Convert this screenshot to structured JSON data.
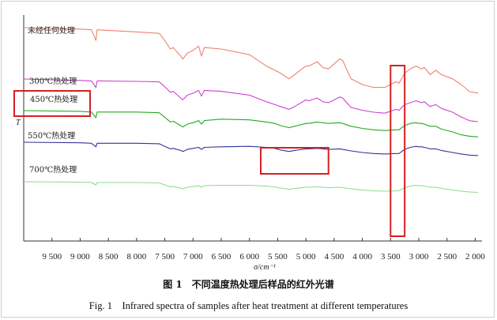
{
  "chart_data": {
    "type": "line",
    "xlabel": "σ/cm⁻¹",
    "ylabel": "T",
    "xlim": [
      10000,
      1950
    ],
    "x_reversed": true,
    "x_ticks": [
      9500,
      9000,
      8500,
      8000,
      7500,
      7000,
      6500,
      6000,
      5500,
      5000,
      4500,
      4000,
      3500,
      3000,
      2500,
      2000
    ],
    "x_tick_labels": [
      "9 500",
      "9 000",
      "8 500",
      "8 000",
      "7 500",
      "7 000",
      "6 500",
      "6 000",
      "5 500",
      "5 000",
      "4 500",
      "4 000",
      "3 500",
      "3 000",
      "2 500",
      "2 000"
    ],
    "grid": false,
    "legend": "inline labels above each curve",
    "series": [
      {
        "name": "未经任何处理",
        "color": "#f08070",
        "y": 0,
        "points": [
          [
            10000,
            0.2
          ],
          [
            9000,
            0.21
          ],
          [
            8800,
            0.215
          ],
          [
            8720,
            0.29
          ],
          [
            8700,
            0.215
          ],
          [
            8000,
            0.23
          ],
          [
            7600,
            0.24
          ],
          [
            7520,
            0.28
          ],
          [
            7400,
            0.35
          ],
          [
            7350,
            0.34
          ],
          [
            7220,
            0.4
          ],
          [
            7180,
            0.42
          ],
          [
            7100,
            0.38
          ],
          [
            7000,
            0.36
          ],
          [
            6900,
            0.33
          ],
          [
            6850,
            0.4
          ],
          [
            6800,
            0.34
          ],
          [
            6500,
            0.35
          ],
          [
            6000,
            0.39
          ],
          [
            5700,
            0.47
          ],
          [
            5550,
            0.5
          ],
          [
            5450,
            0.52
          ],
          [
            5300,
            0.56
          ],
          [
            5200,
            0.53
          ],
          [
            5000,
            0.47
          ],
          [
            4950,
            0.47
          ],
          [
            4800,
            0.44
          ],
          [
            4700,
            0.48
          ],
          [
            4600,
            0.49
          ],
          [
            4400,
            0.42
          ],
          [
            4350,
            0.43
          ],
          [
            4200,
            0.56
          ],
          [
            4000,
            0.6
          ],
          [
            3800,
            0.62
          ],
          [
            3600,
            0.62
          ],
          [
            3400,
            0.58
          ],
          [
            3350,
            0.59
          ],
          [
            3250,
            0.52
          ],
          [
            3150,
            0.49
          ],
          [
            3050,
            0.47
          ],
          [
            3000,
            0.48
          ],
          [
            2950,
            0.49
          ],
          [
            2900,
            0.48
          ],
          [
            2800,
            0.53
          ],
          [
            2700,
            0.5
          ],
          [
            2600,
            0.53
          ],
          [
            2400,
            0.56
          ],
          [
            2250,
            0.6
          ],
          [
            2100,
            0.65
          ],
          [
            1950,
            0.66
          ]
        ]
      },
      {
        "name": "300℃热处理",
        "color": "#cc44cc",
        "y": 0,
        "points": [
          [
            10000,
            0.43
          ],
          [
            9000,
            0.445
          ],
          [
            8800,
            0.45
          ],
          [
            8720,
            0.52
          ],
          [
            8700,
            0.45
          ],
          [
            8000,
            0.455
          ],
          [
            7600,
            0.46
          ],
          [
            7520,
            0.5
          ],
          [
            7400,
            0.57
          ],
          [
            7350,
            0.56
          ],
          [
            7220,
            0.63
          ],
          [
            7180,
            0.65
          ],
          [
            7100,
            0.6
          ],
          [
            7000,
            0.58
          ],
          [
            6900,
            0.55
          ],
          [
            6850,
            0.61
          ],
          [
            6800,
            0.55
          ],
          [
            6500,
            0.56
          ],
          [
            6000,
            0.6
          ],
          [
            5700,
            0.67
          ],
          [
            5550,
            0.7
          ],
          [
            5450,
            0.72
          ],
          [
            5300,
            0.75
          ],
          [
            5200,
            0.72
          ],
          [
            5000,
            0.65
          ],
          [
            4950,
            0.66
          ],
          [
            4800,
            0.63
          ],
          [
            4700,
            0.67
          ],
          [
            4600,
            0.68
          ],
          [
            4400,
            0.62
          ],
          [
            4350,
            0.63
          ],
          [
            4200,
            0.73
          ],
          [
            4000,
            0.76
          ],
          [
            3800,
            0.78
          ],
          [
            3600,
            0.79
          ],
          [
            3400,
            0.75
          ],
          [
            3350,
            0.76
          ],
          [
            3250,
            0.7
          ],
          [
            3150,
            0.68
          ],
          [
            3050,
            0.66
          ],
          [
            3000,
            0.67
          ],
          [
            2950,
            0.68
          ],
          [
            2900,
            0.67
          ],
          [
            2800,
            0.72
          ],
          [
            2700,
            0.7
          ],
          [
            2600,
            0.74
          ],
          [
            2400,
            0.78
          ],
          [
            2250,
            0.83
          ],
          [
            2100,
            0.87
          ],
          [
            1950,
            0.88
          ]
        ]
      },
      {
        "name": "450℃热处理",
        "color": "#22aa22",
        "y": 0,
        "points": [
          [
            10000,
            0.58
          ],
          [
            9000,
            0.59
          ],
          [
            8800,
            0.6
          ],
          [
            8720,
            0.68
          ],
          [
            8700,
            0.6
          ],
          [
            8000,
            0.6
          ],
          [
            7600,
            0.61
          ],
          [
            7520,
            0.66
          ],
          [
            7400,
            0.74
          ],
          [
            7350,
            0.73
          ],
          [
            7220,
            0.79
          ],
          [
            7180,
            0.81
          ],
          [
            7100,
            0.77
          ],
          [
            7000,
            0.75
          ],
          [
            6900,
            0.72
          ],
          [
            6850,
            0.77
          ],
          [
            6800,
            0.72
          ],
          [
            6500,
            0.7
          ],
          [
            6000,
            0.71
          ],
          [
            5700,
            0.74
          ],
          [
            5550,
            0.76
          ],
          [
            5450,
            0.79
          ],
          [
            5300,
            0.82
          ],
          [
            5200,
            0.8
          ],
          [
            5000,
            0.76
          ],
          [
            4950,
            0.76
          ],
          [
            4800,
            0.74
          ],
          [
            4700,
            0.75
          ],
          [
            4600,
            0.76
          ],
          [
            4400,
            0.75
          ],
          [
            4350,
            0.76
          ],
          [
            4200,
            0.8
          ],
          [
            4000,
            0.83
          ],
          [
            3800,
            0.85
          ],
          [
            3600,
            0.86
          ],
          [
            3400,
            0.85
          ],
          [
            3350,
            0.85
          ],
          [
            3250,
            0.79
          ],
          [
            3150,
            0.76
          ],
          [
            3050,
            0.75
          ],
          [
            3000,
            0.76
          ],
          [
            2950,
            0.76
          ],
          [
            2900,
            0.77
          ],
          [
            2800,
            0.8
          ],
          [
            2700,
            0.8
          ],
          [
            2600,
            0.84
          ],
          [
            2400,
            0.88
          ],
          [
            2250,
            0.92
          ],
          [
            2100,
            0.94
          ],
          [
            1950,
            0.95
          ]
        ]
      },
      {
        "name": "550℃热处理",
        "color": "#333399",
        "y": 0,
        "points": [
          [
            10000,
            0.8
          ],
          [
            9000,
            0.81
          ],
          [
            8800,
            0.82
          ],
          [
            8720,
            0.89
          ],
          [
            8700,
            0.82
          ],
          [
            8000,
            0.82
          ],
          [
            7600,
            0.83
          ],
          [
            7520,
            0.87
          ],
          [
            7400,
            0.93
          ],
          [
            7350,
            0.92
          ],
          [
            7220,
            0.96
          ],
          [
            7180,
            0.98
          ],
          [
            7100,
            0.94
          ],
          [
            7000,
            0.92
          ],
          [
            6900,
            0.9
          ],
          [
            6850,
            0.94
          ],
          [
            6800,
            0.9
          ],
          [
            6500,
            0.89
          ],
          [
            6000,
            0.88
          ],
          [
            5700,
            0.9
          ],
          [
            5550,
            0.92
          ],
          [
            5450,
            0.95
          ],
          [
            5300,
            0.98
          ],
          [
            5200,
            0.96
          ],
          [
            5000,
            0.93
          ],
          [
            4950,
            0.93
          ],
          [
            4800,
            0.92
          ],
          [
            4700,
            0.93
          ],
          [
            4600,
            0.94
          ],
          [
            4400,
            0.93
          ],
          [
            4350,
            0.94
          ],
          [
            4200,
            0.97
          ],
          [
            4000,
            1.0
          ],
          [
            3800,
            1.02
          ],
          [
            3600,
            1.03
          ],
          [
            3400,
            1.02
          ],
          [
            3350,
            1.02
          ],
          [
            3250,
            0.94
          ],
          [
            3150,
            0.9
          ],
          [
            3050,
            0.88
          ],
          [
            3000,
            0.89
          ],
          [
            2950,
            0.89
          ],
          [
            2900,
            0.9
          ],
          [
            2800,
            0.93
          ],
          [
            2700,
            0.93
          ],
          [
            2600,
            0.96
          ],
          [
            2400,
            1.0
          ],
          [
            2250,
            1.03
          ],
          [
            2100,
            1.05
          ],
          [
            1950,
            1.06
          ]
        ]
      },
      {
        "name": "700℃热处理",
        "color": "#88dd88",
        "y": 0,
        "points": [
          [
            10000,
            1.0
          ],
          [
            9000,
            1.01
          ],
          [
            8800,
            1.02
          ],
          [
            8720,
            1.08
          ],
          [
            8700,
            1.02
          ],
          [
            8000,
            1.02
          ],
          [
            7600,
            1.03
          ],
          [
            7520,
            1.07
          ],
          [
            7400,
            1.13
          ],
          [
            7350,
            1.12
          ],
          [
            7220,
            1.16
          ],
          [
            7180,
            1.18
          ],
          [
            7100,
            1.14
          ],
          [
            7000,
            1.12
          ],
          [
            6900,
            1.1
          ],
          [
            6850,
            1.14
          ],
          [
            6800,
            1.1
          ],
          [
            6500,
            1.09
          ],
          [
            6000,
            1.09
          ],
          [
            5700,
            1.11
          ],
          [
            5550,
            1.13
          ],
          [
            5450,
            1.16
          ],
          [
            5300,
            1.19
          ],
          [
            5200,
            1.17
          ],
          [
            5000,
            1.14
          ],
          [
            4950,
            1.14
          ],
          [
            4800,
            1.13
          ],
          [
            4700,
            1.14
          ],
          [
            4600,
            1.15
          ],
          [
            4400,
            1.14
          ],
          [
            4350,
            1.15
          ],
          [
            4200,
            1.18
          ],
          [
            4000,
            1.21
          ],
          [
            3800,
            1.23
          ],
          [
            3600,
            1.24
          ],
          [
            3400,
            1.23
          ],
          [
            3350,
            1.23
          ],
          [
            3250,
            1.15
          ],
          [
            3150,
            1.11
          ],
          [
            3050,
            1.09
          ],
          [
            3000,
            1.1
          ],
          [
            2950,
            1.1
          ],
          [
            2900,
            1.11
          ],
          [
            2800,
            1.14
          ],
          [
            2700,
            1.14
          ],
          [
            2600,
            1.17
          ],
          [
            2400,
            1.21
          ],
          [
            2250,
            1.24
          ],
          [
            2100,
            1.26
          ],
          [
            1950,
            1.27
          ]
        ]
      }
    ],
    "highlight_boxes": [
      {
        "label": "450℃热处理",
        "color": "#d62020"
      },
      {
        "x_range": [
          5800,
          4600
        ],
        "color": "#d62020"
      },
      {
        "x_range": [
          3500,
          3250
        ],
        "color": "#d62020"
      }
    ]
  },
  "caption": {
    "cn": "图 1　不同温度热处理后样品的红外光谱",
    "en": "Fig. 1　Infrared spectra of samples after heat treatment at different temperatures"
  }
}
